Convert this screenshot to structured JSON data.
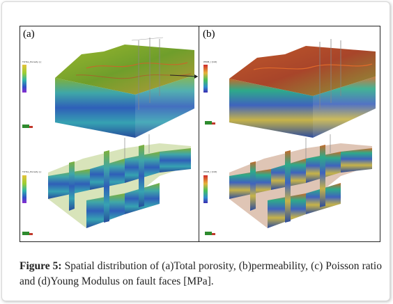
{
  "figure": {
    "panel_a_label": "(a)",
    "panel_b_label": "(b)",
    "legend_a_top_title": "TOTAL_Porosity [-]",
    "legend_b_top_title": "PERM_I [mD]",
    "legend_a_bottom_title": "TOTAL_Porosity [-]",
    "legend_b_bottom_title": "PERM_I [mD]",
    "colors": {
      "porosity_surface": "#7fa62a",
      "permeability_surface": "#b85a20",
      "layer_blue": "#2f59b3",
      "layer_cyan": "#2aa7b6",
      "frame": "#222222"
    }
  },
  "caption": {
    "label": "Figure 5:",
    "text": "Spatial distribution of (a)Total porosity, (b)permeability, (c) Poisson ratio and (d)Young Modulus on fault faces [MPa]."
  }
}
